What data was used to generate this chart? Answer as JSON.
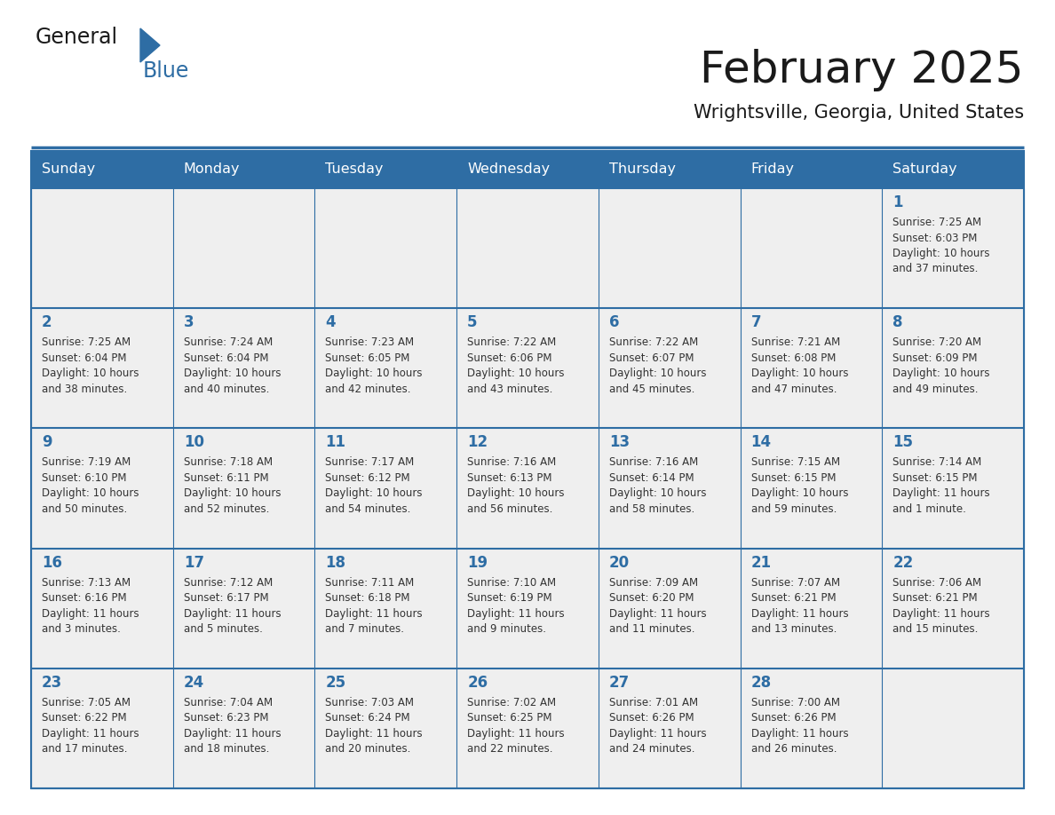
{
  "title": "February 2025",
  "subtitle": "Wrightsville, Georgia, United States",
  "days_of_week": [
    "Sunday",
    "Monday",
    "Tuesday",
    "Wednesday",
    "Thursday",
    "Friday",
    "Saturday"
  ],
  "header_bg": "#2E6DA4",
  "header_text_color": "#FFFFFF",
  "cell_bg": "#EFEFEF",
  "border_color": "#2E6DA4",
  "text_color": "#333333",
  "day_num_color": "#2E6DA4",
  "title_color": "#1a1a1a",
  "weeks": [
    [
      {
        "day": "",
        "info": ""
      },
      {
        "day": "",
        "info": ""
      },
      {
        "day": "",
        "info": ""
      },
      {
        "day": "",
        "info": ""
      },
      {
        "day": "",
        "info": ""
      },
      {
        "day": "",
        "info": ""
      },
      {
        "day": "1",
        "info": "Sunrise: 7:25 AM\nSunset: 6:03 PM\nDaylight: 10 hours\nand 37 minutes."
      }
    ],
    [
      {
        "day": "2",
        "info": "Sunrise: 7:25 AM\nSunset: 6:04 PM\nDaylight: 10 hours\nand 38 minutes."
      },
      {
        "day": "3",
        "info": "Sunrise: 7:24 AM\nSunset: 6:04 PM\nDaylight: 10 hours\nand 40 minutes."
      },
      {
        "day": "4",
        "info": "Sunrise: 7:23 AM\nSunset: 6:05 PM\nDaylight: 10 hours\nand 42 minutes."
      },
      {
        "day": "5",
        "info": "Sunrise: 7:22 AM\nSunset: 6:06 PM\nDaylight: 10 hours\nand 43 minutes."
      },
      {
        "day": "6",
        "info": "Sunrise: 7:22 AM\nSunset: 6:07 PM\nDaylight: 10 hours\nand 45 minutes."
      },
      {
        "day": "7",
        "info": "Sunrise: 7:21 AM\nSunset: 6:08 PM\nDaylight: 10 hours\nand 47 minutes."
      },
      {
        "day": "8",
        "info": "Sunrise: 7:20 AM\nSunset: 6:09 PM\nDaylight: 10 hours\nand 49 minutes."
      }
    ],
    [
      {
        "day": "9",
        "info": "Sunrise: 7:19 AM\nSunset: 6:10 PM\nDaylight: 10 hours\nand 50 minutes."
      },
      {
        "day": "10",
        "info": "Sunrise: 7:18 AM\nSunset: 6:11 PM\nDaylight: 10 hours\nand 52 minutes."
      },
      {
        "day": "11",
        "info": "Sunrise: 7:17 AM\nSunset: 6:12 PM\nDaylight: 10 hours\nand 54 minutes."
      },
      {
        "day": "12",
        "info": "Sunrise: 7:16 AM\nSunset: 6:13 PM\nDaylight: 10 hours\nand 56 minutes."
      },
      {
        "day": "13",
        "info": "Sunrise: 7:16 AM\nSunset: 6:14 PM\nDaylight: 10 hours\nand 58 minutes."
      },
      {
        "day": "14",
        "info": "Sunrise: 7:15 AM\nSunset: 6:15 PM\nDaylight: 10 hours\nand 59 minutes."
      },
      {
        "day": "15",
        "info": "Sunrise: 7:14 AM\nSunset: 6:15 PM\nDaylight: 11 hours\nand 1 minute."
      }
    ],
    [
      {
        "day": "16",
        "info": "Sunrise: 7:13 AM\nSunset: 6:16 PM\nDaylight: 11 hours\nand 3 minutes."
      },
      {
        "day": "17",
        "info": "Sunrise: 7:12 AM\nSunset: 6:17 PM\nDaylight: 11 hours\nand 5 minutes."
      },
      {
        "day": "18",
        "info": "Sunrise: 7:11 AM\nSunset: 6:18 PM\nDaylight: 11 hours\nand 7 minutes."
      },
      {
        "day": "19",
        "info": "Sunrise: 7:10 AM\nSunset: 6:19 PM\nDaylight: 11 hours\nand 9 minutes."
      },
      {
        "day": "20",
        "info": "Sunrise: 7:09 AM\nSunset: 6:20 PM\nDaylight: 11 hours\nand 11 minutes."
      },
      {
        "day": "21",
        "info": "Sunrise: 7:07 AM\nSunset: 6:21 PM\nDaylight: 11 hours\nand 13 minutes."
      },
      {
        "day": "22",
        "info": "Sunrise: 7:06 AM\nSunset: 6:21 PM\nDaylight: 11 hours\nand 15 minutes."
      }
    ],
    [
      {
        "day": "23",
        "info": "Sunrise: 7:05 AM\nSunset: 6:22 PM\nDaylight: 11 hours\nand 17 minutes."
      },
      {
        "day": "24",
        "info": "Sunrise: 7:04 AM\nSunset: 6:23 PM\nDaylight: 11 hours\nand 18 minutes."
      },
      {
        "day": "25",
        "info": "Sunrise: 7:03 AM\nSunset: 6:24 PM\nDaylight: 11 hours\nand 20 minutes."
      },
      {
        "day": "26",
        "info": "Sunrise: 7:02 AM\nSunset: 6:25 PM\nDaylight: 11 hours\nand 22 minutes."
      },
      {
        "day": "27",
        "info": "Sunrise: 7:01 AM\nSunset: 6:26 PM\nDaylight: 11 hours\nand 24 minutes."
      },
      {
        "day": "28",
        "info": "Sunrise: 7:00 AM\nSunset: 6:26 PM\nDaylight: 11 hours\nand 26 minutes."
      },
      {
        "day": "",
        "info": ""
      }
    ]
  ]
}
